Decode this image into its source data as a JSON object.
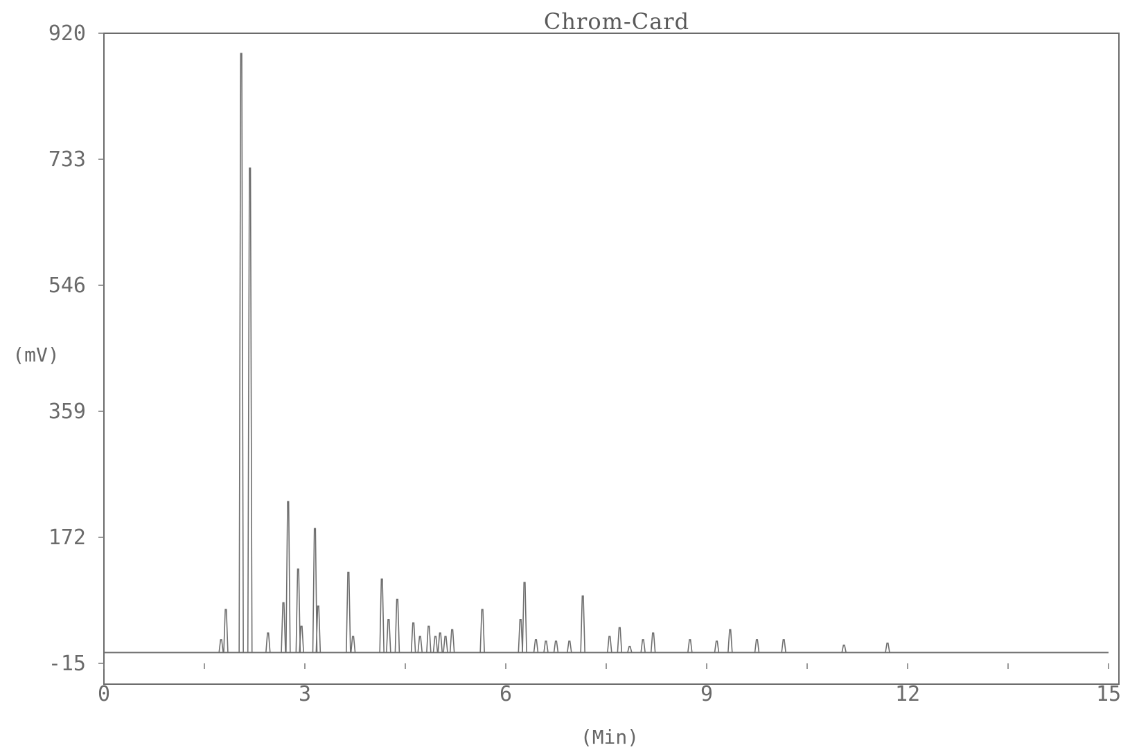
{
  "chart_data": {
    "type": "line",
    "title": "Chrom-Card",
    "xlabel": "(Min)",
    "ylabel": "(mV)",
    "xlim": [
      0,
      15
    ],
    "ylim": [
      -15,
      920
    ],
    "x_ticks": [
      "0",
      "3",
      "6",
      "9",
      "12",
      "15"
    ],
    "y_ticks": [
      "-15",
      "172",
      "359",
      "546",
      "733",
      "920"
    ],
    "x_tick_values": [
      0,
      3,
      6,
      9,
      12,
      15
    ],
    "y_tick_values": [
      -15,
      172,
      359,
      546,
      733,
      920
    ],
    "baseline_mv": 1,
    "series": [
      {
        "peaks": [
          [
            1.75,
            20
          ],
          [
            1.82,
            65
          ],
          [
            2.05,
            890
          ],
          [
            2.18,
            720
          ],
          [
            2.45,
            30
          ],
          [
            2.68,
            75
          ],
          [
            2.75,
            225
          ],
          [
            2.9,
            125
          ],
          [
            2.95,
            40
          ],
          [
            3.15,
            185
          ],
          [
            3.2,
            70
          ],
          [
            3.65,
            120
          ],
          [
            3.72,
            25
          ],
          [
            4.15,
            110
          ],
          [
            4.25,
            50
          ],
          [
            4.38,
            80
          ],
          [
            4.62,
            45
          ],
          [
            4.72,
            25
          ],
          [
            4.85,
            40
          ],
          [
            4.95,
            25
          ],
          [
            5.02,
            30
          ],
          [
            5.1,
            25
          ],
          [
            5.2,
            35
          ],
          [
            5.65,
            65
          ],
          [
            6.22,
            50
          ],
          [
            6.28,
            105
          ],
          [
            6.45,
            20
          ],
          [
            6.6,
            18
          ],
          [
            6.75,
            18
          ],
          [
            6.95,
            18
          ],
          [
            7.15,
            85
          ],
          [
            7.55,
            25
          ],
          [
            7.7,
            38
          ],
          [
            7.85,
            10
          ],
          [
            8.05,
            20
          ],
          [
            8.2,
            30
          ],
          [
            8.75,
            20
          ],
          [
            9.15,
            18
          ],
          [
            9.35,
            35
          ],
          [
            9.75,
            20
          ],
          [
            10.15,
            20
          ],
          [
            11.05,
            12
          ],
          [
            11.7,
            15
          ]
        ]
      }
    ]
  }
}
